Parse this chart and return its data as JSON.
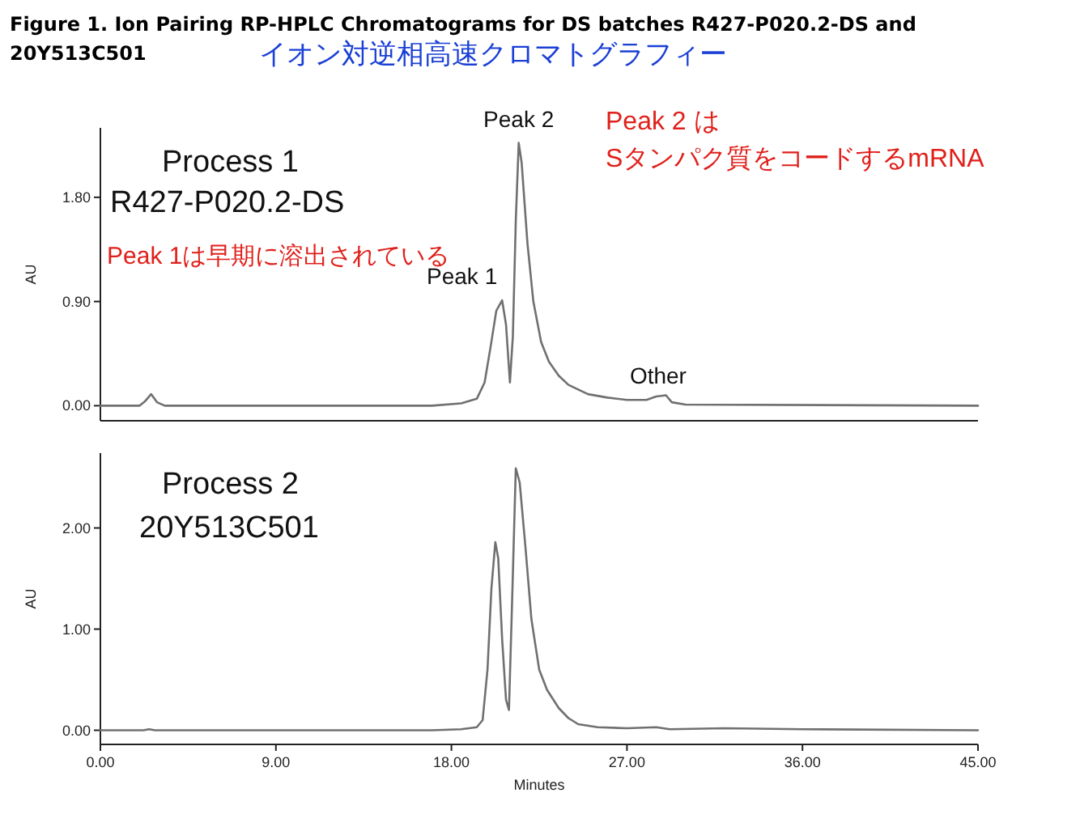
{
  "chart_data": [
    {
      "type": "line",
      "title": "Figure 1.    Ion Pairing RP-HPLC Chromatograms for DS batches R427-P020.2-DS and 20Y513C501",
      "subtitle": "イオン対逆相高速クロマトグラフィー",
      "ylabel": "AU",
      "xlim": [
        0,
        45
      ],
      "ylim": [
        -0.13,
        2.4
      ],
      "yticks": [
        {
          "value": 0,
          "label": "0.00"
        },
        {
          "value": 0.9,
          "label": "0.90"
        },
        {
          "value": 1.8,
          "label": "1.80"
        }
      ],
      "tick_labels": "y",
      "series": [
        {
          "color": "#707070",
          "x": [
            0,
            2.0,
            2.3,
            2.6,
            2.9,
            3.3,
            10,
            17,
            18.5,
            19.3,
            19.7,
            20.0,
            20.3,
            20.6,
            20.8,
            21.0,
            21.15,
            21.3,
            21.45,
            21.6,
            21.9,
            22.2,
            22.6,
            23.0,
            23.5,
            24,
            25,
            26,
            27,
            28,
            28.5,
            29.0,
            29.3,
            30,
            45
          ],
          "values": [
            0,
            0,
            0.04,
            0.1,
            0.03,
            0.0,
            0.0,
            0.0,
            0.02,
            0.06,
            0.2,
            0.5,
            0.82,
            0.91,
            0.7,
            0.2,
            0.6,
            1.6,
            2.27,
            2.1,
            1.4,
            0.9,
            0.55,
            0.38,
            0.26,
            0.18,
            0.1,
            0.07,
            0.05,
            0.05,
            0.08,
            0.09,
            0.03,
            0.01,
            0.0
          ]
        }
      ],
      "annotations": [
        "Process 1",
        "R427-P020.2-DS",
        "Peak 1は早期に溶出されている",
        "Peak 2 は",
        "Sタンパク質をコードするmRNA",
        {
          "text": "Peak 1",
          "x": 20.6,
          "y": 0.91
        },
        {
          "text": "Peak 2",
          "x": 21.45,
          "y": 2.27
        },
        {
          "text": "Other",
          "x": 28.6,
          "y": 0.08
        }
      ]
    },
    {
      "type": "line",
      "ylabel": "AU",
      "xlabel": "Minutes",
      "xlim": [
        0,
        45
      ],
      "ylim": [
        -0.14,
        2.74
      ],
      "yticks": [
        {
          "value": 0,
          "label": "0.00"
        },
        {
          "value": 1,
          "label": "1.00"
        },
        {
          "value": 2,
          "label": "2.00"
        }
      ],
      "xticks": [
        {
          "value": 0,
          "label": "0.00"
        },
        {
          "value": 9,
          "label": "9.00"
        },
        {
          "value": 18,
          "label": "18.00"
        },
        {
          "value": 27,
          "label": "27.00"
        },
        {
          "value": 36,
          "label": "36.00"
        },
        {
          "value": 45,
          "label": "45.00"
        }
      ],
      "series": [
        {
          "color": "#707070",
          "x": [
            0,
            2.2,
            2.5,
            2.8,
            10,
            17,
            18.5,
            19.3,
            19.6,
            19.85,
            20.05,
            20.25,
            20.4,
            20.6,
            20.8,
            20.95,
            21.1,
            21.3,
            21.5,
            21.8,
            22.1,
            22.5,
            22.9,
            23.5,
            24,
            24.5,
            25.5,
            27,
            28.5,
            29.2,
            32,
            36,
            45
          ],
          "values": [
            0,
            0,
            0.01,
            0,
            0,
            0,
            0.01,
            0.03,
            0.1,
            0.6,
            1.4,
            1.86,
            1.7,
            0.9,
            0.3,
            0.2,
            1.2,
            2.59,
            2.45,
            1.8,
            1.1,
            0.6,
            0.4,
            0.22,
            0.12,
            0.06,
            0.03,
            0.02,
            0.03,
            0.01,
            0.02,
            0.01,
            0
          ]
        }
      ],
      "annotations": [
        "Process 2",
        "20Y513C501"
      ]
    }
  ]
}
